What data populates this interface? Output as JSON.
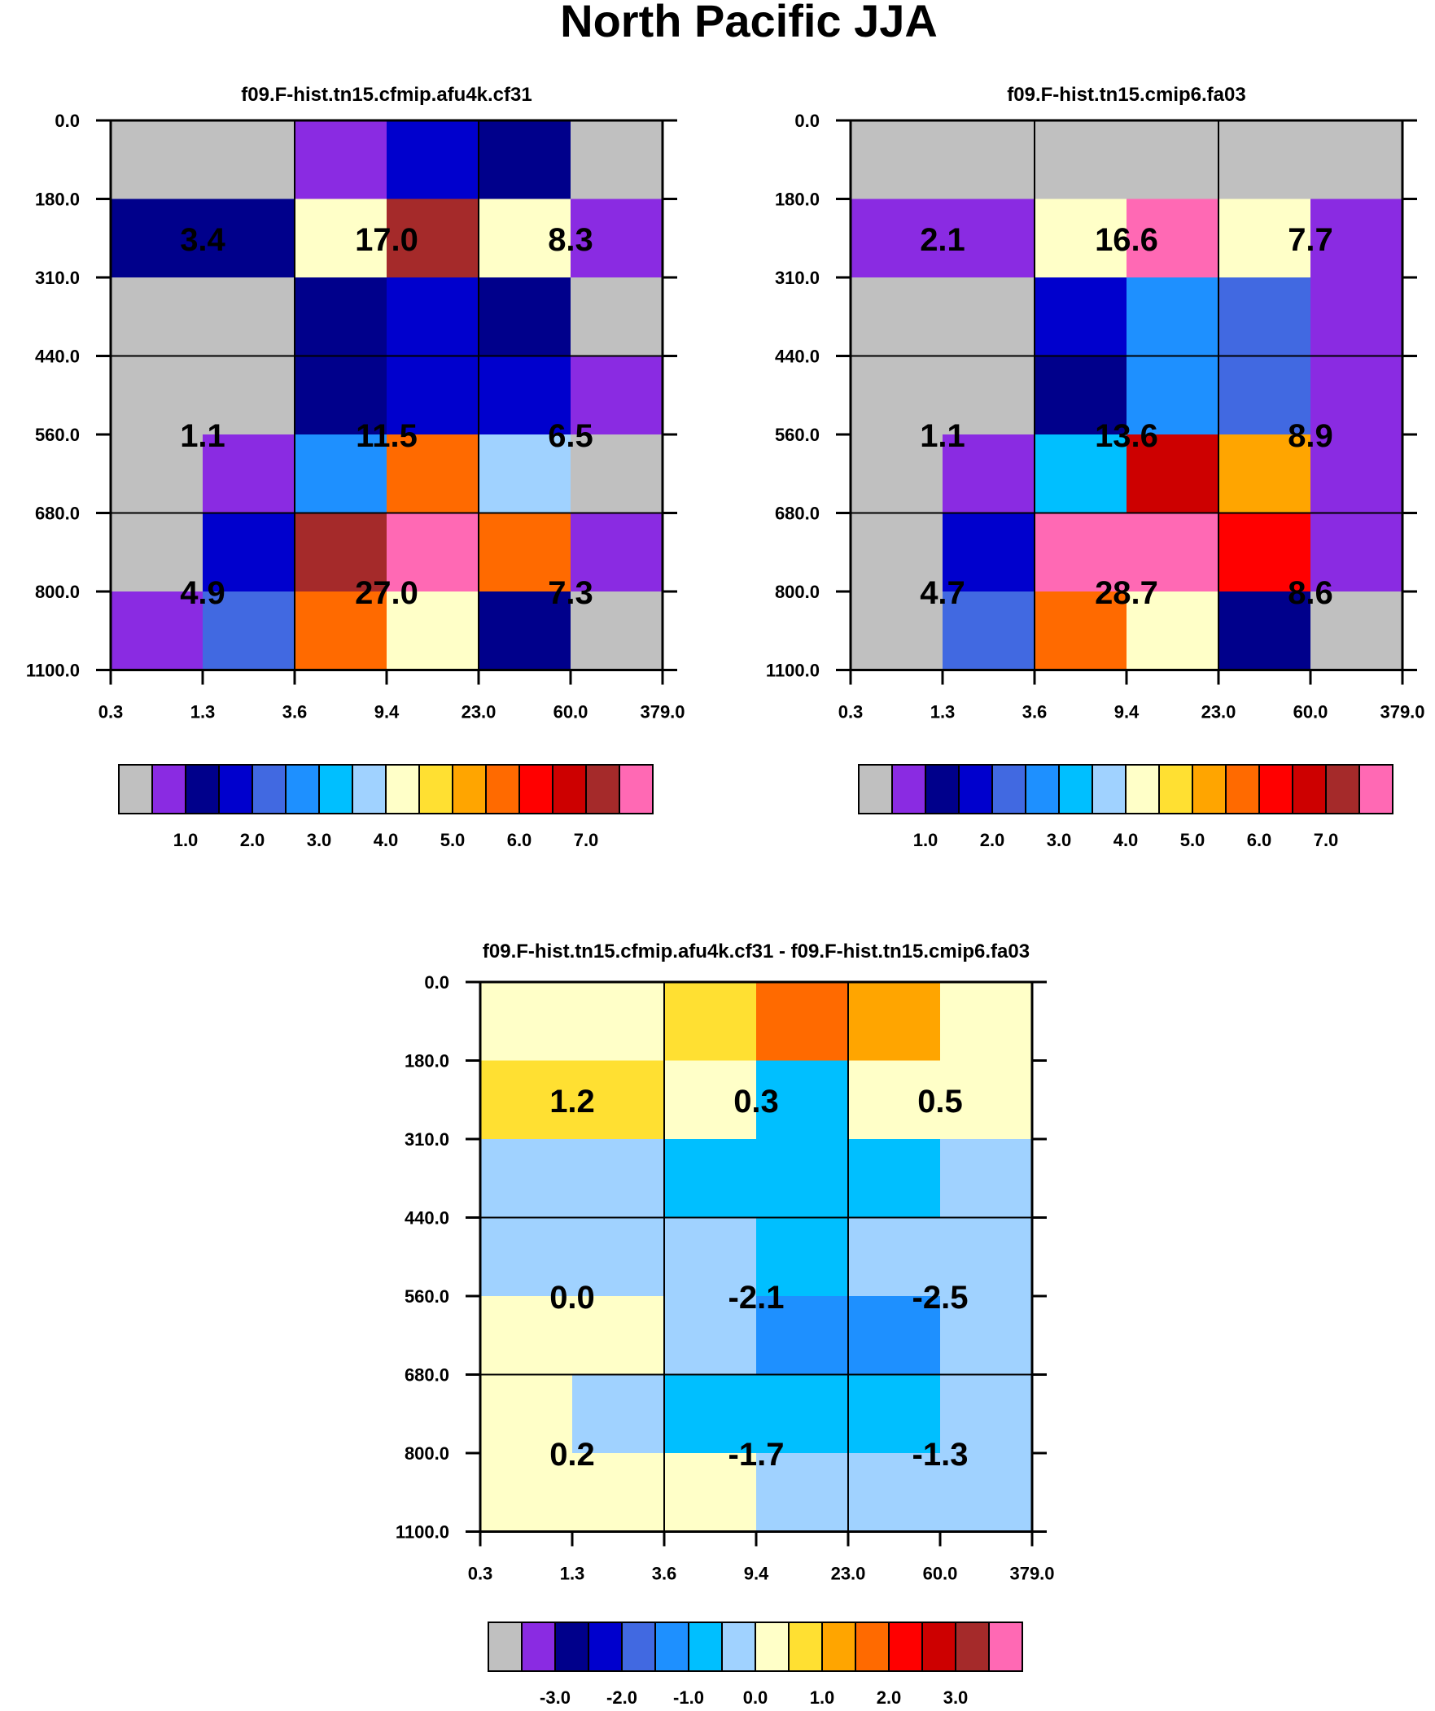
{
  "figure": {
    "title": "North Pacific JJA"
  },
  "colors": [
    "#c0c0c0",
    "#8a2be2",
    "#00008b",
    "#0000cd",
    "#4169e1",
    "#1e90ff",
    "#00bfff",
    "#a0d2ff",
    "#ffffc8",
    "#ffe032",
    "#ffa500",
    "#ff6a00",
    "#ff0000",
    "#cd0000",
    "#a52a2a",
    "#ff69b4"
  ],
  "chart_data": [
    {
      "type": "heatmap",
      "title": "f09.F-hist.tn15.cfmip.afu4k.cf31",
      "x_ticks": [
        "0.3",
        "1.3",
        "3.6",
        "9.4",
        "23.0",
        "60.0",
        "379.0"
      ],
      "y_ticks": [
        "0.0",
        "180.0",
        "310.0",
        "440.0",
        "560.0",
        "680.0",
        "800.0",
        "1100.0"
      ],
      "cell_color_index": [
        [
          0,
          0,
          1,
          3,
          2,
          0
        ],
        [
          2,
          2,
          8,
          14,
          8,
          1
        ],
        [
          0,
          0,
          2,
          3,
          2,
          0
        ],
        [
          0,
          0,
          2,
          3,
          3,
          1
        ],
        [
          0,
          1,
          5,
          11,
          7,
          0
        ],
        [
          0,
          3,
          14,
          15,
          11,
          1
        ],
        [
          1,
          4,
          11,
          8,
          2,
          0
        ]
      ],
      "box_values": [
        [
          "3.4",
          "17.0",
          "8.3"
        ],
        [
          "1.1",
          "11.5",
          "6.5"
        ],
        [
          "4.9",
          "27.0",
          "7.3"
        ]
      ],
      "legend_labels": [
        "1.0",
        "2.0",
        "3.0",
        "4.0",
        "5.0",
        "6.0",
        "7.0"
      ],
      "legend_colors": 16
    },
    {
      "type": "heatmap",
      "title": "f09.F-hist.tn15.cmip6.fa03",
      "x_ticks": [
        "0.3",
        "1.3",
        "3.6",
        "9.4",
        "23.0",
        "60.0",
        "379.0"
      ],
      "y_ticks": [
        "0.0",
        "180.0",
        "310.0",
        "440.0",
        "560.0",
        "680.0",
        "800.0",
        "1100.0"
      ],
      "cell_color_index": [
        [
          0,
          0,
          0,
          0,
          0,
          0
        ],
        [
          1,
          1,
          8,
          15,
          8,
          1
        ],
        [
          0,
          0,
          3,
          5,
          4,
          1
        ],
        [
          0,
          0,
          2,
          5,
          4,
          1
        ],
        [
          0,
          1,
          6,
          13,
          10,
          1
        ],
        [
          0,
          3,
          15,
          15,
          12,
          1
        ],
        [
          0,
          4,
          11,
          8,
          2,
          0
        ]
      ],
      "box_values": [
        [
          "2.1",
          "16.6",
          "7.7"
        ],
        [
          "1.1",
          "13.6",
          "8.9"
        ],
        [
          "4.7",
          "28.7",
          "8.6"
        ]
      ],
      "legend_labels": [
        "1.0",
        "2.0",
        "3.0",
        "4.0",
        "5.0",
        "6.0",
        "7.0"
      ],
      "legend_colors": 16
    },
    {
      "type": "heatmap",
      "title": "f09.F-hist.tn15.cfmip.afu4k.cf31 - f09.F-hist.tn15.cmip6.fa03",
      "x_ticks": [
        "0.3",
        "1.3",
        "3.6",
        "9.4",
        "23.0",
        "60.0",
        "379.0"
      ],
      "y_ticks": [
        "0.0",
        "180.0",
        "310.0",
        "440.0",
        "560.0",
        "680.0",
        "800.0",
        "1100.0"
      ],
      "cell_color_index": [
        [
          8,
          8,
          9,
          11,
          10,
          8
        ],
        [
          9,
          9,
          8,
          6,
          8,
          8
        ],
        [
          7,
          7,
          6,
          6,
          6,
          7
        ],
        [
          7,
          7,
          7,
          6,
          7,
          7
        ],
        [
          8,
          8,
          7,
          5,
          5,
          7
        ],
        [
          8,
          7,
          6,
          6,
          6,
          7
        ],
        [
          8,
          8,
          8,
          7,
          7,
          7
        ]
      ],
      "box_values": [
        [
          "1.2",
          "0.3",
          "0.5"
        ],
        [
          "0.0",
          "-2.1",
          "-2.5"
        ],
        [
          "0.2",
          "-1.7",
          "-1.3"
        ]
      ],
      "legend_labels": [
        "-3.0",
        "-2.0",
        "-1.0",
        "0.0",
        "1.0",
        "2.0",
        "3.0"
      ],
      "legend_colors": 16
    }
  ]
}
